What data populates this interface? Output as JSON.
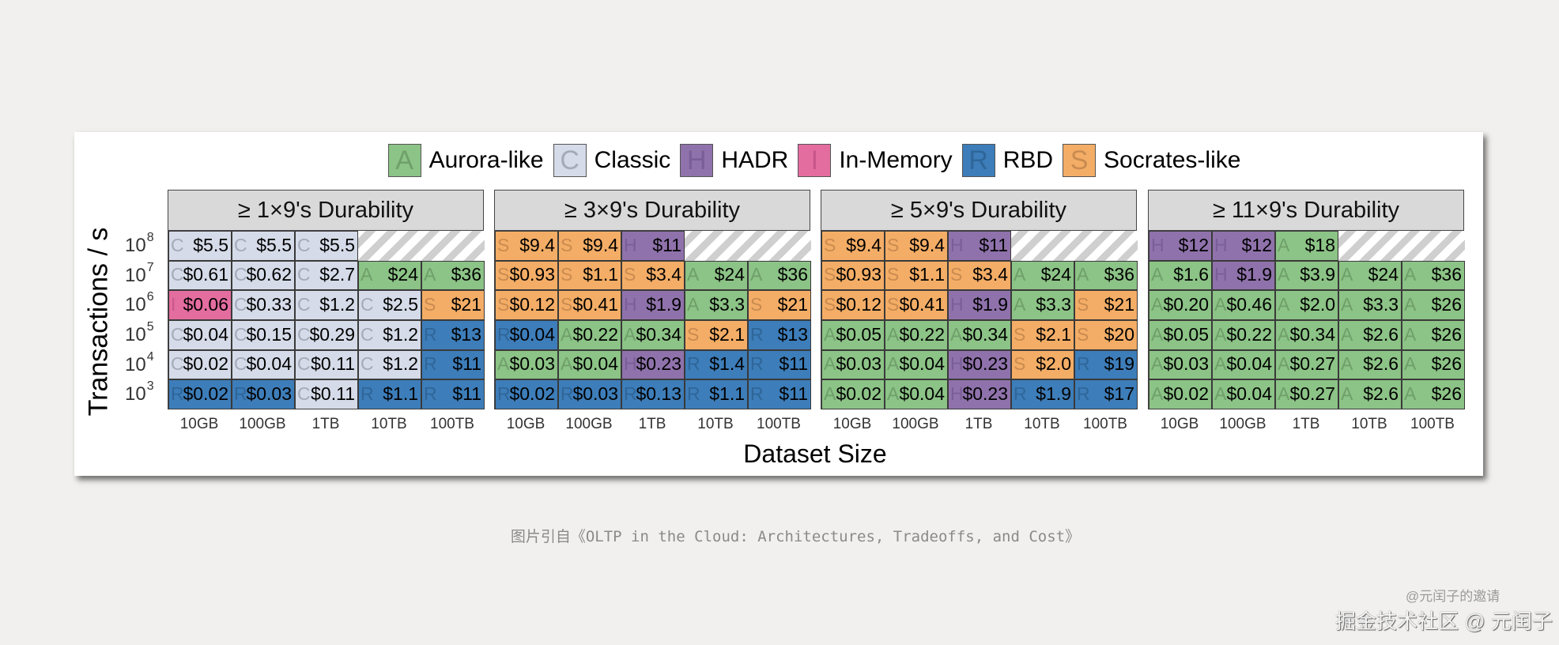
{
  "colors": {
    "A": {
      "bg": "#8cc386",
      "ltr": "#6f9f6a"
    },
    "C": {
      "bg": "#d5dbe8",
      "ltr": "#a4abb8"
    },
    "H": {
      "bg": "#8f72ab",
      "ltr": "#7a5e96"
    },
    "I": {
      "bg": "#e46da0",
      "ltr": "#c9558a"
    },
    "R": {
      "bg": "#3d7db9",
      "ltr": "#2f6699"
    },
    "S": {
      "bg": "#f4ad66",
      "ltr": "#c98b50"
    }
  },
  "chart_data": {
    "type": "heatmap",
    "legend": [
      {
        "key": "A",
        "label": "Aurora-like"
      },
      {
        "key": "C",
        "label": "Classic"
      },
      {
        "key": "H",
        "label": "HADR"
      },
      {
        "key": "I",
        "label": "In-Memory"
      },
      {
        "key": "R",
        "label": "RBD"
      },
      {
        "key": "S",
        "label": "Socrates-like"
      }
    ],
    "legend_position": "top",
    "xlabel": "Dataset Size",
    "ylabel": "Transactions / s",
    "x_ticks": [
      "10GB",
      "100GB",
      "1TB",
      "10TB",
      "100TB"
    ],
    "y_ticks": [
      {
        "base": "10",
        "exp": "8"
      },
      {
        "base": "10",
        "exp": "7"
      },
      {
        "base": "10",
        "exp": "6"
      },
      {
        "base": "10",
        "exp": "5"
      },
      {
        "base": "10",
        "exp": "4"
      },
      {
        "base": "10",
        "exp": "3"
      }
    ],
    "panels": [
      {
        "title": "≥ 1×9's Durability",
        "rows": [
          [
            [
              "C",
              "$5.5"
            ],
            [
              "C",
              "$5.5"
            ],
            [
              "C",
              "$5.5"
            ],
            null,
            null
          ],
          [
            [
              "C",
              "$0.61"
            ],
            [
              "C",
              "$0.62"
            ],
            [
              "C",
              "$2.7"
            ],
            [
              "A",
              "$24"
            ],
            [
              "A",
              "$36"
            ]
          ],
          [
            [
              "I",
              "$0.06"
            ],
            [
              "C",
              "$0.33"
            ],
            [
              "C",
              "$1.2"
            ],
            [
              "C",
              "$2.5"
            ],
            [
              "S",
              "$21"
            ]
          ],
          [
            [
              "C",
              "$0.04"
            ],
            [
              "C",
              "$0.15"
            ],
            [
              "C",
              "$0.29"
            ],
            [
              "C",
              "$1.2"
            ],
            [
              "R",
              "$13"
            ]
          ],
          [
            [
              "C",
              "$0.02"
            ],
            [
              "C",
              "$0.04"
            ],
            [
              "C",
              "$0.11"
            ],
            [
              "C",
              "$1.2"
            ],
            [
              "R",
              "$11"
            ]
          ],
          [
            [
              "R",
              "$0.02"
            ],
            [
              "R",
              "$0.03"
            ],
            [
              "C",
              "$0.11"
            ],
            [
              "R",
              "$1.1"
            ],
            [
              "R",
              "$11"
            ]
          ]
        ]
      },
      {
        "title": "≥ 3×9's Durability",
        "rows": [
          [
            [
              "S",
              "$9.4"
            ],
            [
              "S",
              "$9.4"
            ],
            [
              "H",
              "$11"
            ],
            null,
            null
          ],
          [
            [
              "S",
              "$0.93"
            ],
            [
              "S",
              "$1.1"
            ],
            [
              "S",
              "$3.4"
            ],
            [
              "A",
              "$24"
            ],
            [
              "A",
              "$36"
            ]
          ],
          [
            [
              "S",
              "$0.12"
            ],
            [
              "S",
              "$0.41"
            ],
            [
              "H",
              "$1.9"
            ],
            [
              "A",
              "$3.3"
            ],
            [
              "S",
              "$21"
            ]
          ],
          [
            [
              "R",
              "$0.04"
            ],
            [
              "A",
              "$0.22"
            ],
            [
              "A",
              "$0.34"
            ],
            [
              "S",
              "$2.1"
            ],
            [
              "R",
              "$13"
            ]
          ],
          [
            [
              "A",
              "$0.03"
            ],
            [
              "A",
              "$0.04"
            ],
            [
              "H",
              "$0.23"
            ],
            [
              "R",
              "$1.4"
            ],
            [
              "R",
              "$11"
            ]
          ],
          [
            [
              "R",
              "$0.02"
            ],
            [
              "R",
              "$0.03"
            ],
            [
              "R",
              "$0.13"
            ],
            [
              "R",
              "$1.1"
            ],
            [
              "R",
              "$11"
            ]
          ]
        ]
      },
      {
        "title": "≥ 5×9's Durability",
        "rows": [
          [
            [
              "S",
              "$9.4"
            ],
            [
              "S",
              "$9.4"
            ],
            [
              "H",
              "$11"
            ],
            null,
            null
          ],
          [
            [
              "S",
              "$0.93"
            ],
            [
              "S",
              "$1.1"
            ],
            [
              "S",
              "$3.4"
            ],
            [
              "A",
              "$24"
            ],
            [
              "A",
              "$36"
            ]
          ],
          [
            [
              "S",
              "$0.12"
            ],
            [
              "S",
              "$0.41"
            ],
            [
              "H",
              "$1.9"
            ],
            [
              "A",
              "$3.3"
            ],
            [
              "S",
              "$21"
            ]
          ],
          [
            [
              "A",
              "$0.05"
            ],
            [
              "A",
              "$0.22"
            ],
            [
              "A",
              "$0.34"
            ],
            [
              "S",
              "$2.1"
            ],
            [
              "S",
              "$20"
            ]
          ],
          [
            [
              "A",
              "$0.03"
            ],
            [
              "A",
              "$0.04"
            ],
            [
              "H",
              "$0.23"
            ],
            [
              "S",
              "$2.0"
            ],
            [
              "R",
              "$19"
            ]
          ],
          [
            [
              "A",
              "$0.02"
            ],
            [
              "A",
              "$0.04"
            ],
            [
              "H",
              "$0.23"
            ],
            [
              "R",
              "$1.9"
            ],
            [
              "R",
              "$17"
            ]
          ]
        ]
      },
      {
        "title": "≥ 11×9's Durability",
        "rows": [
          [
            [
              "H",
              "$12"
            ],
            [
              "H",
              "$12"
            ],
            [
              "A",
              "$18"
            ],
            null,
            null
          ],
          [
            [
              "A",
              "$1.6"
            ],
            [
              "H",
              "$1.9"
            ],
            [
              "A",
              "$3.9"
            ],
            [
              "A",
              "$24"
            ],
            [
              "A",
              "$36"
            ]
          ],
          [
            [
              "A",
              "$0.20"
            ],
            [
              "A",
              "$0.46"
            ],
            [
              "A",
              "$2.0"
            ],
            [
              "A",
              "$3.3"
            ],
            [
              "A",
              "$26"
            ]
          ],
          [
            [
              "A",
              "$0.05"
            ],
            [
              "A",
              "$0.22"
            ],
            [
              "A",
              "$0.34"
            ],
            [
              "A",
              "$2.6"
            ],
            [
              "A",
              "$26"
            ]
          ],
          [
            [
              "A",
              "$0.03"
            ],
            [
              "A",
              "$0.04"
            ],
            [
              "A",
              "$0.27"
            ],
            [
              "A",
              "$2.6"
            ],
            [
              "A",
              "$26"
            ]
          ],
          [
            [
              "A",
              "$0.02"
            ],
            [
              "A",
              "$0.04"
            ],
            [
              "A",
              "$0.27"
            ],
            [
              "A",
              "$2.6"
            ],
            [
              "A",
              "$26"
            ]
          ]
        ]
      }
    ]
  },
  "caption": "图片引自《OLTP in the Cloud: Architectures, Tradeoffs, and Cost》",
  "watermark": {
    "line1": "@元闰子的邀请",
    "line2": "掘金技术社区 @ 元闰子"
  }
}
